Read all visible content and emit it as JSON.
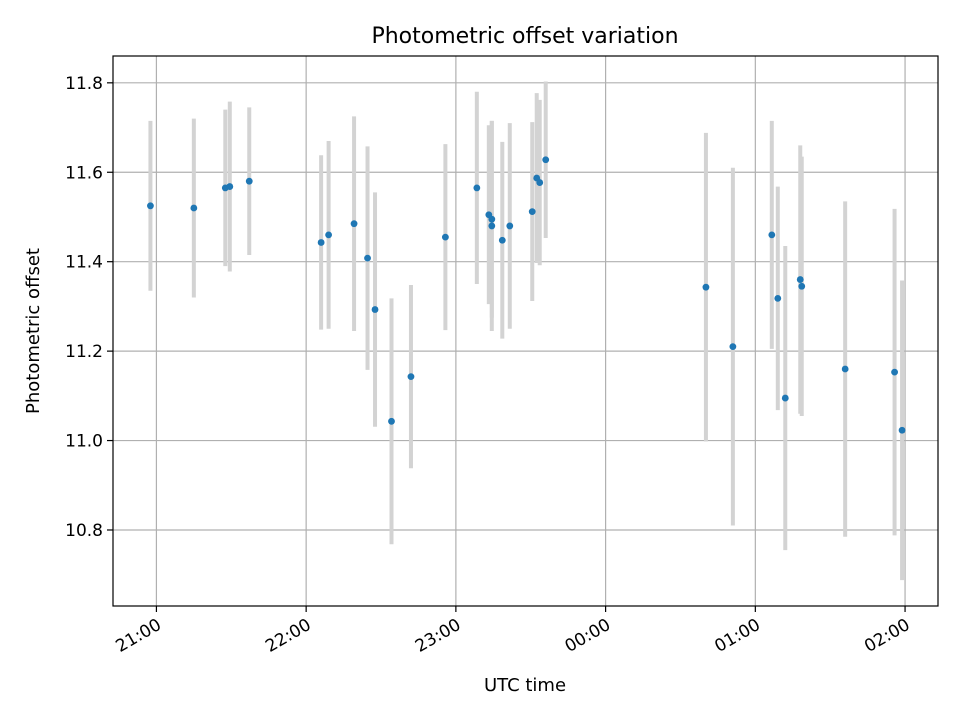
{
  "chart_data": {
    "type": "scatter",
    "title": "Photometric offset variation",
    "xlabel": "UTC time",
    "ylabel": "Photometric offset",
    "x_unit": "UTC time of day (hours, continuing past midnight)",
    "xlim": [
      20.71,
      26.22
    ],
    "ylim": [
      10.63,
      11.86
    ],
    "x_ticks": [
      {
        "value": 21,
        "label": "21:00"
      },
      {
        "value": 22,
        "label": "22:00"
      },
      {
        "value": 23,
        "label": "23:00"
      },
      {
        "value": 24,
        "label": "00:00"
      },
      {
        "value": 25,
        "label": "01:00"
      },
      {
        "value": 26,
        "label": "02:00"
      }
    ],
    "y_ticks": [
      {
        "value": 10.8,
        "label": "10.8"
      },
      {
        "value": 11.0,
        "label": "11.0"
      },
      {
        "value": 11.2,
        "label": "11.2"
      },
      {
        "value": 11.4,
        "label": "11.4"
      },
      {
        "value": 11.6,
        "label": "11.6"
      },
      {
        "value": 11.8,
        "label": "11.8"
      }
    ],
    "grid": true,
    "point_color": "#1f77b4",
    "errorbar_color": "#d3d3d3",
    "points": [
      {
        "x": 20.96,
        "y": 11.525,
        "err": 0.19
      },
      {
        "x": 21.25,
        "y": 11.52,
        "err": 0.2
      },
      {
        "x": 21.46,
        "y": 11.565,
        "err": 0.175
      },
      {
        "x": 21.49,
        "y": 11.568,
        "err": 0.19
      },
      {
        "x": 21.62,
        "y": 11.58,
        "err": 0.165
      },
      {
        "x": 22.1,
        "y": 11.443,
        "err": 0.195
      },
      {
        "x": 22.15,
        "y": 11.46,
        "err": 0.21
      },
      {
        "x": 22.32,
        "y": 11.485,
        "err": 0.24
      },
      {
        "x": 22.41,
        "y": 11.408,
        "err": 0.25
      },
      {
        "x": 22.46,
        "y": 11.293,
        "err": 0.262
      },
      {
        "x": 22.57,
        "y": 11.043,
        "err": 0.275
      },
      {
        "x": 22.7,
        "y": 11.143,
        "err": 0.205
      },
      {
        "x": 22.93,
        "y": 11.455,
        "err": 0.208
      },
      {
        "x": 23.14,
        "y": 11.565,
        "err": 0.215
      },
      {
        "x": 23.22,
        "y": 11.505,
        "err": 0.2
      },
      {
        "x": 23.24,
        "y": 11.48,
        "err": 0.235
      },
      {
        "x": 23.24,
        "y": 11.495,
        "err": 0.22
      },
      {
        "x": 23.31,
        "y": 11.448,
        "err": 0.22
      },
      {
        "x": 23.36,
        "y": 11.48,
        "err": 0.23
      },
      {
        "x": 23.51,
        "y": 11.512,
        "err": 0.2
      },
      {
        "x": 23.54,
        "y": 11.587,
        "err": 0.19
      },
      {
        "x": 23.56,
        "y": 11.577,
        "err": 0.185
      },
      {
        "x": 23.6,
        "y": 11.628,
        "err": 0.175
      },
      {
        "x": 24.67,
        "y": 11.343,
        "err": 0.345
      },
      {
        "x": 24.85,
        "y": 11.21,
        "err": 0.4
      },
      {
        "x": 25.11,
        "y": 11.46,
        "err": 0.255
      },
      {
        "x": 25.15,
        "y": 11.318,
        "err": 0.25
      },
      {
        "x": 25.2,
        "y": 11.095,
        "err": 0.34
      },
      {
        "x": 25.3,
        "y": 11.36,
        "err": 0.3
      },
      {
        "x": 25.31,
        "y": 11.345,
        "err": 0.29
      },
      {
        "x": 25.6,
        "y": 11.16,
        "err": 0.375
      },
      {
        "x": 25.93,
        "y": 11.153,
        "err": 0.365
      },
      {
        "x": 25.98,
        "y": 11.023,
        "err": 0.335
      }
    ]
  }
}
